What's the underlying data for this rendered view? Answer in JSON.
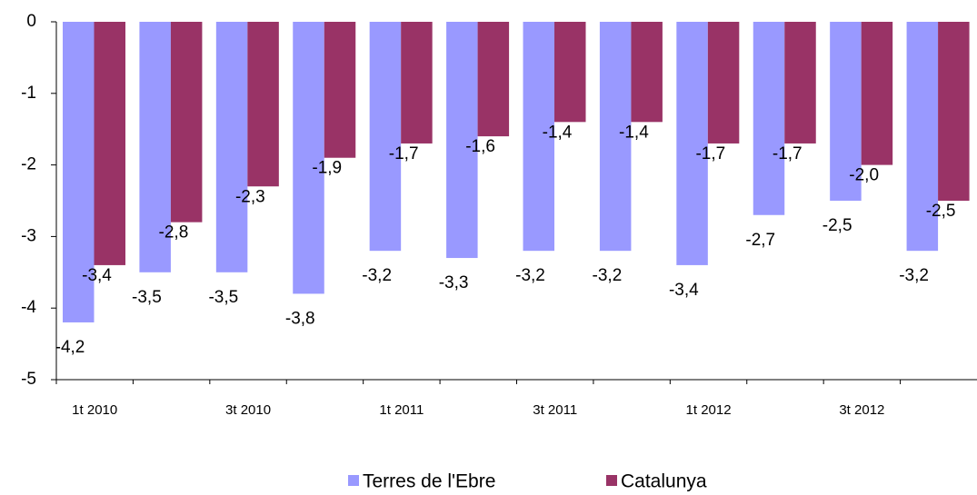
{
  "chart_data": {
    "type": "bar",
    "categories": [
      "1t 2010",
      null,
      "3t 2010",
      null,
      "1t 2011",
      null,
      "3t 2011",
      null,
      "1t 2012",
      null,
      "3t 2012",
      null
    ],
    "series": [
      {
        "name": "Terres de l'Ebre",
        "color": "#9999ff",
        "values": [
          -4.2,
          -3.5,
          -3.5,
          -3.8,
          -3.2,
          -3.3,
          -3.2,
          -3.2,
          -3.4,
          -2.7,
          -2.5,
          -3.2
        ],
        "value_labels": [
          "-4,2",
          "-3,5",
          "-3,5",
          "-3,8",
          "-3,2",
          "-3,3",
          "-3,2",
          "-3,2",
          "-3,4",
          "-2,7",
          "-2,5",
          "-3,2"
        ]
      },
      {
        "name": "Catalunya",
        "color": "#993366",
        "values": [
          -3.4,
          -2.8,
          -2.3,
          -1.9,
          -1.7,
          -1.6,
          -1.4,
          -1.4,
          -1.7,
          -1.7,
          -2.0,
          -2.5
        ],
        "value_labels": [
          "-3,4",
          "-2,8",
          "-2,3",
          "-1,9",
          "-1,7",
          "-1,6",
          "-1,4",
          "-1,4",
          "-1,7",
          "-1,7",
          "-2,0",
          "-2,5"
        ]
      }
    ],
    "ylim": [
      -5,
      0
    ],
    "yticks": [
      0,
      -1,
      -2,
      -3,
      -4,
      -5
    ],
    "legend": "bottom"
  }
}
